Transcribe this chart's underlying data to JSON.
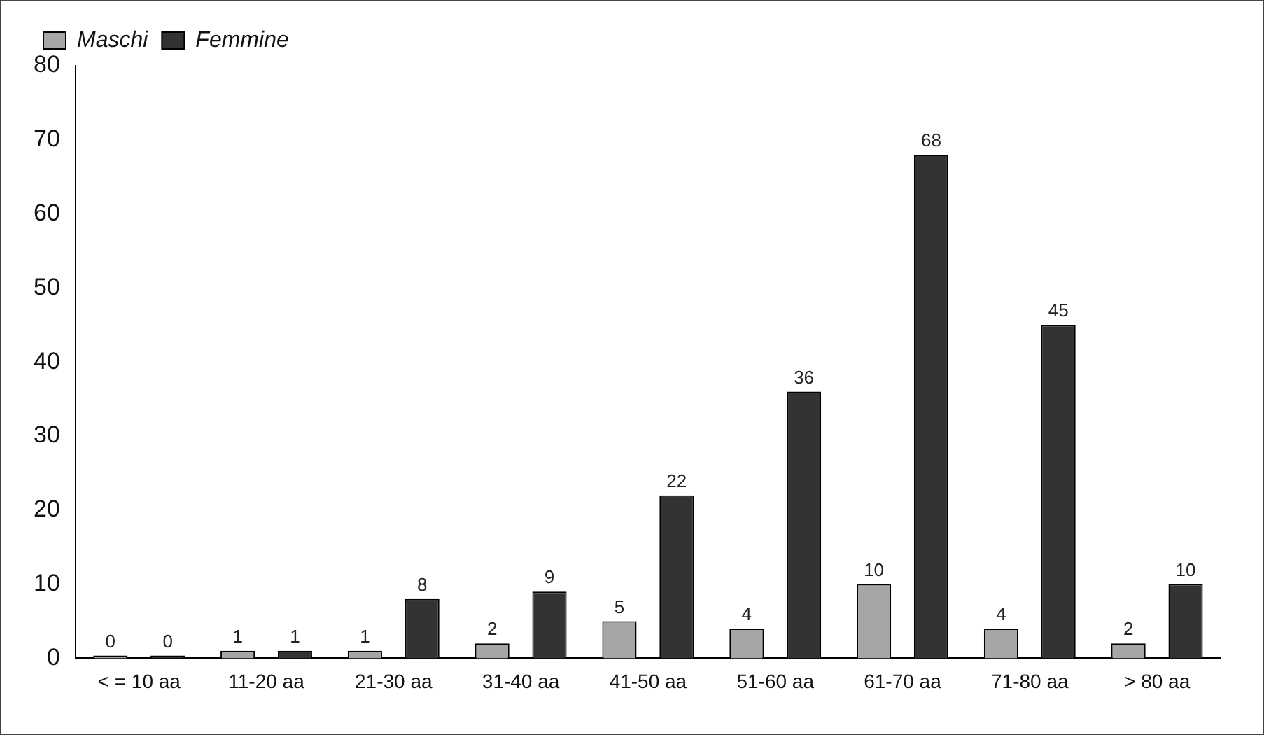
{
  "chart_data": {
    "type": "bar",
    "categories": [
      "< = 10 aa",
      "11-20 aa",
      "21-30 aa",
      "31-40 aa",
      "41-50 aa",
      "51-60 aa",
      "61-70 aa",
      "71-80 aa",
      "> 80 aa"
    ],
    "series": [
      {
        "name": "Maschi",
        "color": "#a6a6a6",
        "values": [
          0,
          1,
          1,
          2,
          5,
          4,
          10,
          4,
          2
        ]
      },
      {
        "name": "Femmine",
        "color": "#333333",
        "values": [
          0,
          1,
          8,
          9,
          22,
          36,
          68,
          45,
          10
        ]
      }
    ],
    "ylim": [
      0,
      80
    ],
    "yticks": [
      0,
      10,
      20,
      30,
      40,
      50,
      60,
      70,
      80
    ],
    "grid": false,
    "legend": "top left",
    "data_labels": true
  }
}
